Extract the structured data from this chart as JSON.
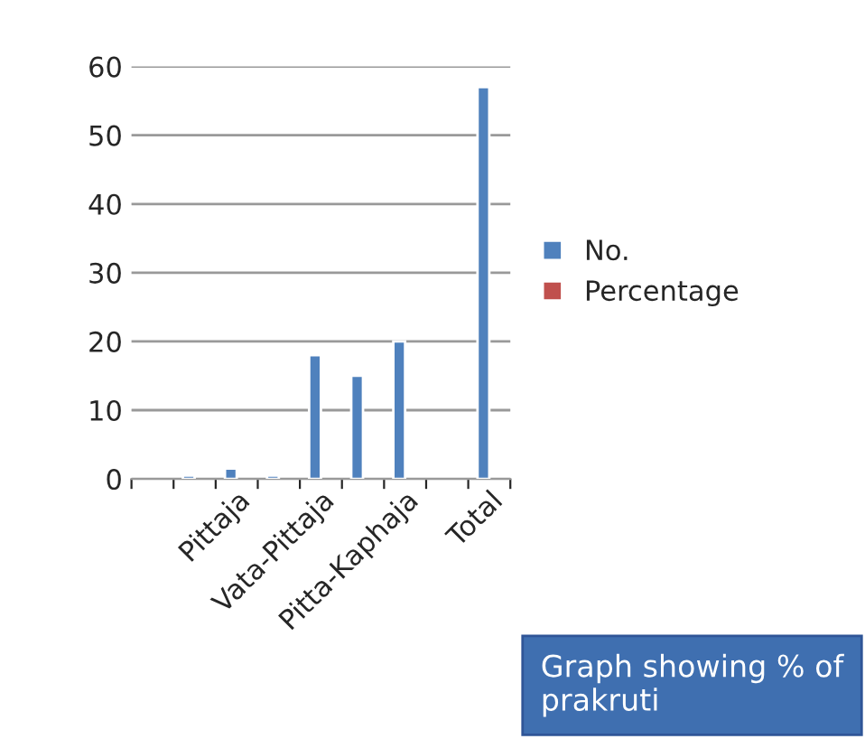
{
  "chart_data": {
    "type": "bar",
    "categories": [
      null,
      null,
      "Pittaja",
      null,
      "Vata-Pittaja",
      null,
      "Pitta-Kaphaja",
      null,
      "Total"
    ],
    "series": [
      {
        "name": "No.",
        "color": "#4f81bd",
        "values": [
          null,
          0.5,
          1.5,
          0.5,
          18,
          15,
          20,
          null,
          57
        ]
      },
      {
        "name": "Percentage",
        "color": "#c0504d",
        "values": [
          null,
          null,
          null,
          null,
          null,
          null,
          null,
          null,
          null
        ]
      }
    ],
    "ylim": [
      0,
      60
    ],
    "yticks": [
      0,
      10,
      20,
      30,
      40,
      50,
      60
    ],
    "grid": "y",
    "legend": "right",
    "annotations": [
      "Graph showing % of prakruti"
    ]
  }
}
